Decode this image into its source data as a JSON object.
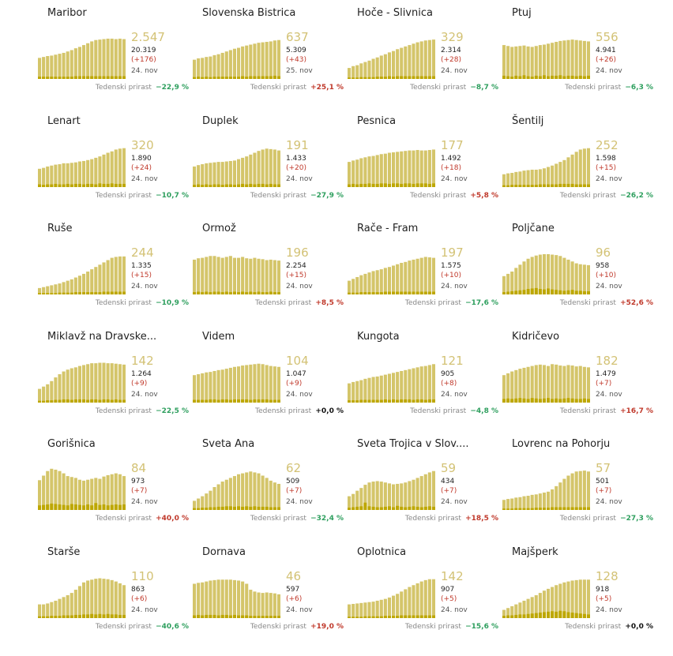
{
  "colors": {
    "bar": "#d4c56a",
    "bar_dark": "#bda700",
    "number": "#d3c275",
    "negative": "#2e9f5e",
    "positive": "#c0392b"
  },
  "growth_label": "Tedenski prirast",
  "chart_data": [
    {
      "type": "bar",
      "name": "Maribor",
      "active": "2.547",
      "total": "20.319",
      "diff": "(+176)",
      "date": "24. nov",
      "growth": "−22,9 %",
      "growth_sign": "neg",
      "values": [
        46,
        48,
        50,
        51,
        53,
        55,
        57,
        60,
        63,
        67,
        70,
        74,
        78,
        82,
        85,
        86,
        87,
        88,
        88,
        87,
        88,
        87
      ],
      "new": [
        5,
        5,
        5,
        5,
        5,
        5,
        5,
        5,
        5,
        6,
        6,
        6,
        6,
        6,
        6,
        6,
        6,
        6,
        6,
        6,
        6,
        6
      ]
    },
    {
      "type": "bar",
      "name": "Slovenska Bistrica",
      "active": "637",
      "total": "5.309",
      "diff": "(+43)",
      "date": "25. nov",
      "growth": "+25,1 %",
      "growth_sign": "pos",
      "values": [
        42,
        45,
        46,
        48,
        49,
        52,
        54,
        57,
        60,
        63,
        66,
        68,
        71,
        73,
        75,
        77,
        79,
        80,
        81,
        82,
        84,
        85
      ],
      "new": [
        4,
        5,
        4,
        5,
        4,
        5,
        5,
        5,
        5,
        5,
        5,
        5,
        6,
        5,
        6,
        6,
        6,
        6,
        6,
        6,
        7,
        6
      ]
    },
    {
      "type": "bar",
      "name": "Hoče - Slivnica",
      "active": "329",
      "total": "2.314",
      "diff": "(+28)",
      "date": "24. nov",
      "growth": "−8,7 %",
      "growth_sign": "neg",
      "values": [
        24,
        28,
        30,
        34,
        37,
        40,
        44,
        47,
        51,
        54,
        58,
        61,
        65,
        68,
        71,
        74,
        77,
        80,
        82,
        84,
        85,
        86
      ],
      "new": [
        3,
        3,
        3,
        4,
        4,
        4,
        4,
        5,
        5,
        5,
        6,
        5,
        6,
        6,
        6,
        6,
        6,
        6,
        6,
        6,
        6,
        6
      ]
    },
    {
      "type": "bar",
      "name": "Ptuj",
      "active": "556",
      "total": "4.941",
      "diff": "(+26)",
      "date": "24. nov",
      "growth": "−6,3 %",
      "growth_sign": "neg",
      "values": [
        74,
        72,
        70,
        71,
        72,
        73,
        71,
        70,
        72,
        74,
        75,
        77,
        79,
        81,
        83,
        84,
        85,
        86,
        85,
        84,
        83,
        82
      ],
      "new": [
        7,
        6,
        5,
        7,
        6,
        8,
        6,
        5,
        7,
        6,
        8,
        6,
        7,
        7,
        8,
        6,
        7,
        7,
        6,
        7,
        6,
        7
      ]
    },
    {
      "type": "bar",
      "name": "Lenart",
      "active": "320",
      "total": "1.890",
      "diff": "(+24)",
      "date": "24. nov",
      "growth": "−10,7 %",
      "growth_sign": "neg",
      "values": [
        40,
        42,
        45,
        47,
        49,
        50,
        52,
        52,
        53,
        54,
        56,
        57,
        59,
        61,
        64,
        67,
        71,
        75,
        78,
        82,
        84,
        85
      ],
      "new": [
        6,
        5,
        6,
        6,
        7,
        6,
        6,
        7,
        6,
        7,
        7,
        6,
        7,
        7,
        6,
        8,
        7,
        7,
        8,
        7,
        7,
        7
      ]
    },
    {
      "type": "bar",
      "name": "Duplek",
      "active": "191",
      "total": "1.433",
      "diff": "(+20)",
      "date": "24. nov",
      "growth": "−27,9 %",
      "growth_sign": "neg",
      "values": [
        45,
        48,
        50,
        52,
        53,
        54,
        55,
        55,
        56,
        57,
        58,
        61,
        64,
        67,
        71,
        75,
        79,
        82,
        84,
        83,
        82,
        80
      ],
      "new": [
        5,
        6,
        5,
        6,
        5,
        6,
        6,
        5,
        6,
        6,
        5,
        6,
        7,
        6,
        7,
        6,
        7,
        7,
        6,
        7,
        6,
        6
      ]
    },
    {
      "type": "bar",
      "name": "Pesnica",
      "active": "177",
      "total": "1.492",
      "diff": "(+18)",
      "date": "24. nov",
      "growth": "+5,8 %",
      "growth_sign": "pos",
      "values": [
        55,
        58,
        60,
        63,
        65,
        67,
        68,
        70,
        72,
        73,
        75,
        76,
        77,
        78,
        79,
        80,
        80,
        81,
        80,
        80,
        81,
        82
      ],
      "new": [
        6,
        7,
        6,
        7,
        7,
        8,
        7,
        7,
        8,
        8,
        7,
        8,
        8,
        7,
        8,
        8,
        7,
        8,
        8,
        8,
        7,
        8
      ]
    },
    {
      "type": "bar",
      "name": "Šentilj",
      "active": "252",
      "total": "1.598",
      "diff": "(+15)",
      "date": "24. nov",
      "growth": "−26,2 %",
      "growth_sign": "neg",
      "values": [
        28,
        30,
        31,
        33,
        34,
        36,
        37,
        38,
        38,
        39,
        41,
        44,
        47,
        51,
        55,
        59,
        65,
        71,
        77,
        82,
        84,
        85
      ],
      "new": [
        4,
        4,
        5,
        5,
        5,
        5,
        5,
        5,
        5,
        6,
        6,
        6,
        6,
        6,
        7,
        7,
        7,
        7,
        6,
        6,
        6,
        6
      ]
    },
    {
      "type": "bar",
      "name": "Ruše",
      "active": "244",
      "total": "1.335",
      "diff": "(+15)",
      "date": "24. nov",
      "growth": "−10,9 %",
      "growth_sign": "neg",
      "values": [
        14,
        16,
        18,
        20,
        22,
        24,
        27,
        30,
        33,
        37,
        41,
        45,
        50,
        55,
        60,
        65,
        70,
        75,
        80,
        82,
        83,
        83
      ],
      "new": [
        3,
        3,
        3,
        3,
        3,
        4,
        4,
        4,
        4,
        5,
        5,
        5,
        5,
        5,
        5,
        5,
        6,
        6,
        6,
        6,
        6,
        6
      ]
    },
    {
      "type": "bar",
      "name": "Ormož",
      "active": "196",
      "total": "2.254",
      "diff": "(+15)",
      "date": "24. nov",
      "growth": "+8,5 %",
      "growth_sign": "pos",
      "values": [
        76,
        79,
        80,
        82,
        84,
        84,
        82,
        80,
        82,
        84,
        80,
        80,
        82,
        79,
        78,
        80,
        78,
        77,
        75,
        76,
        75,
        74
      ],
      "new": [
        5,
        6,
        5,
        6,
        5,
        6,
        6,
        5,
        6,
        5,
        6,
        5,
        6,
        5,
        6,
        5,
        6,
        5,
        5,
        6,
        5,
        5
      ]
    },
    {
      "type": "bar",
      "name": "Rače - Fram",
      "active": "197",
      "total": "1.575",
      "diff": "(+10)",
      "date": "24. nov",
      "growth": "−17,6 %",
      "growth_sign": "neg",
      "values": [
        30,
        34,
        38,
        42,
        45,
        48,
        51,
        53,
        55,
        58,
        60,
        63,
        66,
        69,
        71,
        74,
        76,
        78,
        80,
        82,
        81,
        80
      ],
      "new": [
        4,
        4,
        4,
        5,
        5,
        5,
        5,
        5,
        5,
        6,
        6,
        6,
        6,
        6,
        6,
        6,
        6,
        6,
        6,
        6,
        6,
        6
      ]
    },
    {
      "type": "bar",
      "name": "Poljčane",
      "active": "96",
      "total": "958",
      "diff": "(+10)",
      "date": "24. nov",
      "growth": "+52,6 %",
      "growth_sign": "pos",
      "values": [
        40,
        45,
        50,
        58,
        65,
        72,
        78,
        82,
        85,
        87,
        88,
        88,
        87,
        86,
        84,
        80,
        76,
        72,
        68,
        66,
        65,
        64
      ],
      "new": [
        5,
        6,
        7,
        8,
        9,
        10,
        12,
        13,
        14,
        12,
        11,
        13,
        11,
        10,
        9,
        8,
        9,
        10,
        8,
        8,
        7,
        7
      ]
    },
    {
      "type": "bar",
      "name": "Miklavž na Dravske...",
      "active": "142",
      "total": "1.264",
      "diff": "(+9)",
      "date": "24. nov",
      "growth": "−22,5 %",
      "growth_sign": "neg",
      "values": [
        30,
        35,
        40,
        47,
        55,
        62,
        68,
        72,
        75,
        77,
        80,
        82,
        84,
        86,
        86,
        87,
        87,
        86,
        86,
        85,
        84,
        83
      ],
      "new": [
        4,
        4,
        5,
        5,
        6,
        6,
        7,
        7,
        6,
        7,
        7,
        7,
        6,
        7,
        7,
        6,
        7,
        7,
        6,
        7,
        6,
        6
      ]
    },
    {
      "type": "bar",
      "name": "Videm",
      "active": "104",
      "total": "1.047",
      "diff": "(+9)",
      "date": "24. nov",
      "growth": "+0,0 %",
      "growth_sign": "zero",
      "values": [
        60,
        62,
        64,
        66,
        67,
        69,
        71,
        72,
        74,
        76,
        78,
        79,
        81,
        82,
        83,
        84,
        85,
        84,
        82,
        80,
        79,
        78
      ],
      "new": [
        6,
        6,
        6,
        6,
        7,
        7,
        6,
        7,
        7,
        6,
        7,
        7,
        7,
        7,
        6,
        7,
        7,
        7,
        7,
        6,
        6,
        6
      ]
    },
    {
      "type": "bar",
      "name": "Kungota",
      "active": "121",
      "total": "905",
      "diff": "(+8)",
      "date": "24. nov",
      "growth": "−4,8 %",
      "growth_sign": "neg",
      "values": [
        42,
        45,
        47,
        49,
        52,
        54,
        56,
        57,
        59,
        61,
        63,
        65,
        67,
        69,
        71,
        73,
        75,
        77,
        79,
        80,
        82,
        84
      ],
      "new": [
        5,
        5,
        5,
        6,
        6,
        6,
        6,
        6,
        6,
        7,
        6,
        7,
        6,
        7,
        7,
        7,
        6,
        7,
        7,
        6,
        7,
        7
      ]
    },
    {
      "type": "bar",
      "name": "Kidričevo",
      "active": "182",
      "total": "1.479",
      "diff": "(+7)",
      "date": "24. nov",
      "growth": "+16,7 %",
      "growth_sign": "pos",
      "values": [
        60,
        64,
        68,
        71,
        74,
        76,
        78,
        80,
        82,
        83,
        82,
        80,
        84,
        83,
        81,
        80,
        82,
        81,
        79,
        80,
        78,
        77
      ],
      "new": [
        8,
        9,
        8,
        9,
        10,
        9,
        8,
        10,
        9,
        8,
        9,
        10,
        8,
        9,
        8,
        9,
        10,
        9,
        8,
        8,
        9,
        8
      ]
    },
    {
      "type": "bar",
      "name": "Gorišnica",
      "active": "84",
      "total": "973",
      "diff": "(+7)",
      "date": "24. nov",
      "growth": "+40,0 %",
      "growth_sign": "pos",
      "values": [
        65,
        75,
        85,
        90,
        88,
        85,
        80,
        74,
        72,
        70,
        66,
        64,
        66,
        68,
        70,
        68,
        73,
        76,
        78,
        80,
        78,
        74
      ],
      "new": [
        10,
        11,
        12,
        14,
        13,
        12,
        11,
        10,
        13,
        12,
        11,
        10,
        12,
        10,
        15,
        11,
        12,
        10,
        11,
        12,
        11,
        12
      ]
    },
    {
      "type": "bar",
      "name": "Sveta Ana",
      "active": "62",
      "total": "509",
      "diff": "(+7)",
      "date": "24. nov",
      "growth": "−32,4 %",
      "growth_sign": "neg",
      "values": [
        20,
        25,
        30,
        36,
        42,
        50,
        56,
        62,
        66,
        70,
        74,
        78,
        80,
        82,
        84,
        82,
        80,
        75,
        70,
        64,
        60,
        57
      ],
      "new": [
        4,
        4,
        5,
        5,
        6,
        6,
        7,
        7,
        8,
        8,
        7,
        8,
        7,
        8,
        7,
        8,
        7,
        7,
        7,
        6,
        6,
        6
      ]
    },
    {
      "type": "bar",
      "name": "Sveta Trojica v Slov....",
      "active": "59",
      "total": "434",
      "diff": "(+7)",
      "date": "24. nov",
      "growth": "+18,5 %",
      "growth_sign": "pos",
      "values": [
        30,
        35,
        42,
        48,
        55,
        60,
        62,
        63,
        62,
        60,
        58,
        56,
        57,
        58,
        60,
        63,
        66,
        70,
        74,
        78,
        82,
        85
      ],
      "new": [
        5,
        6,
        7,
        8,
        16,
        8,
        7,
        6,
        6,
        7,
        8,
        6,
        9,
        7,
        6,
        7,
        8,
        7,
        6,
        7,
        8,
        7
      ]
    },
    {
      "type": "bar",
      "name": "Lovrenc na Pohorju",
      "active": "57",
      "total": "501",
      "diff": "(+7)",
      "date": "24. nov",
      "growth": "−27,3 %",
      "growth_sign": "neg",
      "values": [
        22,
        24,
        25,
        27,
        28,
        30,
        31,
        33,
        34,
        36,
        38,
        40,
        45,
        52,
        60,
        68,
        75,
        80,
        84,
        85,
        86,
        84
      ],
      "new": [
        3,
        3,
        3,
        4,
        4,
        4,
        4,
        4,
        5,
        5,
        5,
        5,
        6,
        6,
        6,
        6,
        6,
        6,
        6,
        6,
        6,
        6
      ]
    },
    {
      "type": "bar",
      "name": "Starše",
      "active": "110",
      "total": "863",
      "diff": "(+6)",
      "date": "24. nov",
      "growth": "−40,6 %",
      "growth_sign": "neg",
      "values": [
        30,
        30,
        32,
        35,
        38,
        42,
        46,
        50,
        55,
        62,
        70,
        78,
        82,
        84,
        86,
        87,
        86,
        85,
        83,
        80,
        76,
        72
      ],
      "new": [
        4,
        4,
        4,
        5,
        5,
        5,
        6,
        6,
        6,
        7,
        7,
        8,
        8,
        9,
        8,
        9,
        8,
        9,
        8,
        8,
        7,
        7
      ]
    },
    {
      "type": "bar",
      "name": "Dornava",
      "active": "46",
      "total": "597",
      "diff": "(+6)",
      "date": "24. nov",
      "growth": "+19,0 %",
      "growth_sign": "pos",
      "values": [
        75,
        77,
        78,
        80,
        82,
        83,
        84,
        84,
        84,
        84,
        83,
        82,
        80,
        75,
        62,
        58,
        56,
        55,
        56,
        55,
        54,
        52
      ],
      "new": [
        6,
        7,
        6,
        7,
        7,
        7,
        6,
        7,
        7,
        6,
        7,
        6,
        6,
        6,
        5,
        5,
        5,
        5,
        5,
        5,
        5,
        5
      ]
    },
    {
      "type": "bar",
      "name": "Oplotnica",
      "active": "142",
      "total": "907",
      "diff": "(+5)",
      "date": "24. nov",
      "growth": "−15,6 %",
      "growth_sign": "neg",
      "values": [
        30,
        31,
        32,
        33,
        34,
        35,
        36,
        38,
        40,
        42,
        45,
        49,
        53,
        58,
        63,
        68,
        72,
        76,
        80,
        83,
        85,
        85
      ],
      "new": [
        3,
        3,
        3,
        3,
        4,
        4,
        4,
        4,
        4,
        5,
        5,
        5,
        5,
        6,
        6,
        6,
        6,
        6,
        6,
        6,
        6,
        6
      ]
    },
    {
      "type": "bar",
      "name": "Majšperk",
      "active": "128",
      "total": "918",
      "diff": "(+5)",
      "date": "24. nov",
      "growth": "+0,0 %",
      "growth_sign": "zero",
      "values": [
        18,
        22,
        26,
        30,
        34,
        38,
        42,
        46,
        50,
        55,
        60,
        64,
        68,
        72,
        75,
        78,
        80,
        82,
        83,
        84,
        84,
        84
      ],
      "new": [
        5,
        6,
        6,
        7,
        8,
        8,
        9,
        10,
        11,
        12,
        13,
        14,
        15,
        14,
        16,
        15,
        13,
        12,
        11,
        10,
        9,
        8
      ]
    }
  ]
}
